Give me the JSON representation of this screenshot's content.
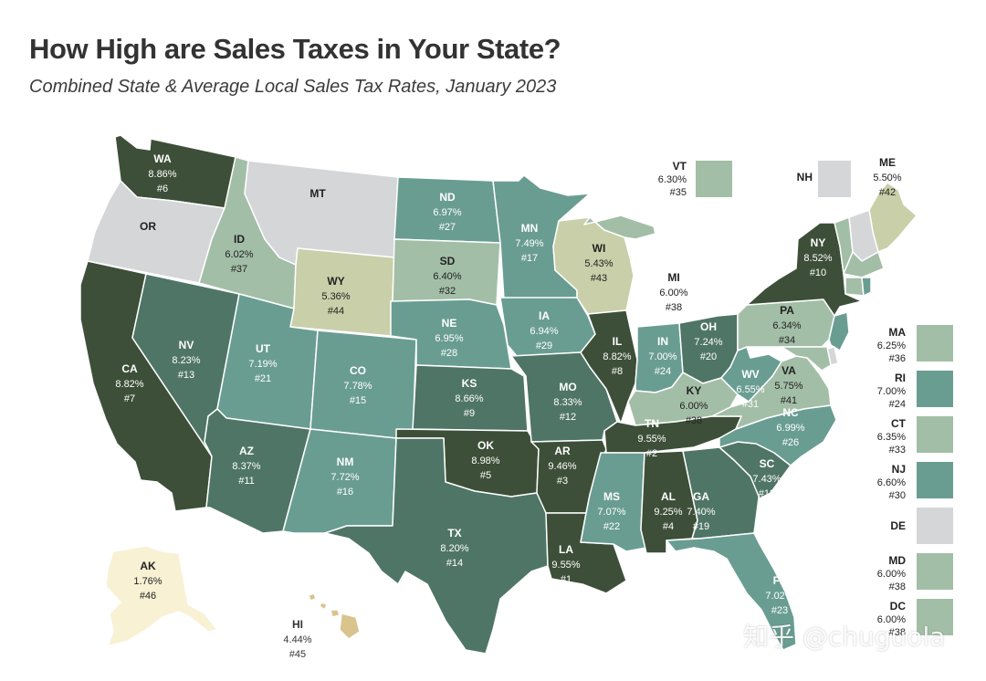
{
  "title": "How High are Sales Taxes in Your State?",
  "subtitle": "Combined State & Average Local Sales Tax Rates, January 2023",
  "watermark": "知乎 @chuguola",
  "colors": {
    "tier1": "#3d4f38",
    "tier2": "#4f7566",
    "tier3": "#6a9d92",
    "tier4": "#a3bea7",
    "tier5": "#c9cfa8",
    "alaska": "#f8f1d4",
    "hawaii": "#d8c48c",
    "none": "#d5d6d8",
    "text_light": "#ffffff",
    "text_dark": "#222222"
  },
  "map_states": [
    {
      "id": "WA",
      "abbr": "WA",
      "rate": "8.86%",
      "rank": "#6",
      "tier": "tier1"
    },
    {
      "id": "OR",
      "abbr": "OR",
      "rate": "",
      "rank": "",
      "tier": "none"
    },
    {
      "id": "CA",
      "abbr": "CA",
      "rate": "8.82%",
      "rank": "#7",
      "tier": "tier1"
    },
    {
      "id": "NV",
      "abbr": "NV",
      "rate": "8.23%",
      "rank": "#13",
      "tier": "tier2"
    },
    {
      "id": "ID",
      "abbr": "ID",
      "rate": "6.02%",
      "rank": "#37",
      "tier": "tier4"
    },
    {
      "id": "MT",
      "abbr": "MT",
      "rate": "",
      "rank": "",
      "tier": "none"
    },
    {
      "id": "WY",
      "abbr": "WY",
      "rate": "5.36%",
      "rank": "#44",
      "tier": "tier5"
    },
    {
      "id": "UT",
      "abbr": "UT",
      "rate": "7.19%",
      "rank": "#21",
      "tier": "tier3"
    },
    {
      "id": "AZ",
      "abbr": "AZ",
      "rate": "8.37%",
      "rank": "#11",
      "tier": "tier2"
    },
    {
      "id": "CO",
      "abbr": "CO",
      "rate": "7.78%",
      "rank": "#15",
      "tier": "tier3"
    },
    {
      "id": "NM",
      "abbr": "NM",
      "rate": "7.72%",
      "rank": "#16",
      "tier": "tier3"
    },
    {
      "id": "ND",
      "abbr": "ND",
      "rate": "6.97%",
      "rank": "#27",
      "tier": "tier3"
    },
    {
      "id": "SD",
      "abbr": "SD",
      "rate": "6.40%",
      "rank": "#32",
      "tier": "tier4"
    },
    {
      "id": "NE",
      "abbr": "NE",
      "rate": "6.95%",
      "rank": "#28",
      "tier": "tier3"
    },
    {
      "id": "KS",
      "abbr": "KS",
      "rate": "8.66%",
      "rank": "#9",
      "tier": "tier2"
    },
    {
      "id": "OK",
      "abbr": "OK",
      "rate": "8.98%",
      "rank": "#5",
      "tier": "tier1"
    },
    {
      "id": "TX",
      "abbr": "TX",
      "rate": "8.20%",
      "rank": "#14",
      "tier": "tier2"
    },
    {
      "id": "MN",
      "abbr": "MN",
      "rate": "7.49%",
      "rank": "#17",
      "tier": "tier3"
    },
    {
      "id": "IA",
      "abbr": "IA",
      "rate": "6.94%",
      "rank": "#29",
      "tier": "tier3"
    },
    {
      "id": "MO",
      "abbr": "MO",
      "rate": "8.33%",
      "rank": "#12",
      "tier": "tier2"
    },
    {
      "id": "AR",
      "abbr": "AR",
      "rate": "9.46%",
      "rank": "#3",
      "tier": "tier1"
    },
    {
      "id": "LA",
      "abbr": "LA",
      "rate": "9.55%",
      "rank": "#1",
      "tier": "tier1"
    },
    {
      "id": "WI",
      "abbr": "WI",
      "rate": "5.43%",
      "rank": "#43",
      "tier": "tier5"
    },
    {
      "id": "IL",
      "abbr": "IL",
      "rate": "8.82%",
      "rank": "#8",
      "tier": "tier1"
    },
    {
      "id": "MI",
      "abbr": "MI",
      "rate": "6.00%",
      "rank": "#38",
      "tier": "tier4"
    },
    {
      "id": "IN",
      "abbr": "IN",
      "rate": "7.00%",
      "rank": "#24",
      "tier": "tier3"
    },
    {
      "id": "OH",
      "abbr": "OH",
      "rate": "7.24%",
      "rank": "#20",
      "tier": "tier2"
    },
    {
      "id": "KY",
      "abbr": "KY",
      "rate": "6.00%",
      "rank": "#38",
      "tier": "tier4"
    },
    {
      "id": "TN",
      "abbr": "TN",
      "rate": "9.55%",
      "rank": "#2",
      "tier": "tier1"
    },
    {
      "id": "MS",
      "abbr": "MS",
      "rate": "7.07%",
      "rank": "#22",
      "tier": "tier3"
    },
    {
      "id": "AL",
      "abbr": "AL",
      "rate": "9.25%",
      "rank": "#4",
      "tier": "tier1"
    },
    {
      "id": "GA",
      "abbr": "GA",
      "rate": "7.40%",
      "rank": "#19",
      "tier": "tier2"
    },
    {
      "id": "FL",
      "abbr": "FL",
      "rate": "7.02%",
      "rank": "#23",
      "tier": "tier3"
    },
    {
      "id": "SC",
      "abbr": "SC",
      "rate": "7.43%",
      "rank": "#18",
      "tier": "tier2"
    },
    {
      "id": "NC",
      "abbr": "NC",
      "rate": "6.99%",
      "rank": "#26",
      "tier": "tier3"
    },
    {
      "id": "VA",
      "abbr": "VA",
      "rate": "5.75%",
      "rank": "#41",
      "tier": "tier4"
    },
    {
      "id": "WV",
      "abbr": "WV",
      "rate": "6.55%",
      "rank": "#31",
      "tier": "tier3"
    },
    {
      "id": "PA",
      "abbr": "PA",
      "rate": "6.34%",
      "rank": "#34",
      "tier": "tier4"
    },
    {
      "id": "NY",
      "abbr": "NY",
      "rate": "8.52%",
      "rank": "#10",
      "tier": "tier1"
    },
    {
      "id": "ME",
      "abbr": "ME",
      "rate": "5.50%",
      "rank": "#42",
      "tier": "tier5"
    },
    {
      "id": "AK",
      "abbr": "AK",
      "rate": "1.76%",
      "rank": "#46",
      "tier": "alaska"
    },
    {
      "id": "HI",
      "abbr": "HI",
      "rate": "4.44%",
      "rank": "#45",
      "tier": "hawaii"
    }
  ],
  "small_states": [
    {
      "abbr": "VT",
      "rate": "6.30%",
      "rank": "#35",
      "tier": "tier4"
    },
    {
      "abbr": "NH",
      "rate": "",
      "rank": "",
      "tier": "none"
    },
    {
      "abbr": "MA",
      "rate": "6.25%",
      "rank": "#36",
      "tier": "tier4"
    },
    {
      "abbr": "RI",
      "rate": "7.00%",
      "rank": "#24",
      "tier": "tier3"
    },
    {
      "abbr": "CT",
      "rate": "6.35%",
      "rank": "#33",
      "tier": "tier4"
    },
    {
      "abbr": "NJ",
      "rate": "6.60%",
      "rank": "#30",
      "tier": "tier3"
    },
    {
      "abbr": "DE",
      "rate": "",
      "rank": "",
      "tier": "none"
    },
    {
      "abbr": "MD",
      "rate": "6.00%",
      "rank": "#38",
      "tier": "tier4"
    },
    {
      "abbr": "DC",
      "rate": "6.00%",
      "rank": "#38",
      "tier": "tier4"
    }
  ]
}
